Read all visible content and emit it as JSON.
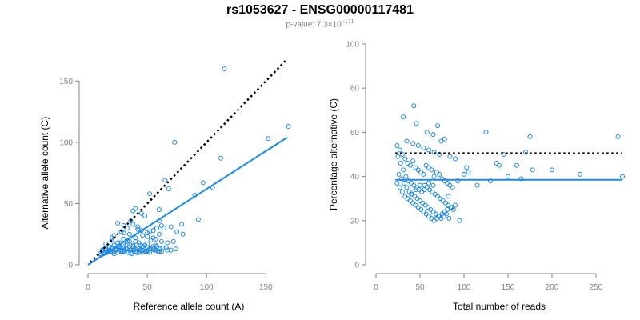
{
  "title": "rs1053627 - ENSG00000117481",
  "subtitle": {
    "prefix": "p-value: 7.3×10",
    "exponent": "−171"
  },
  "colors": {
    "points": "#1e88e5",
    "fit_line": "#1e88e5",
    "reference_line": "#000000",
    "axis": "#808080"
  },
  "chart_data": [
    {
      "type": "scatter",
      "xlabel": "Reference allele count (A)",
      "ylabel": "Alternative allele count (C)",
      "xlim": [
        0,
        170
      ],
      "ylim": [
        0,
        160
      ],
      "xticks": [
        0,
        50,
        100,
        150
      ],
      "yticks": [
        0,
        50,
        100,
        150
      ],
      "grid": false,
      "lines": [
        {
          "style": "dotted",
          "color": "#000000",
          "x": [
            2,
            168
          ],
          "y": [
            2,
            168
          ]
        },
        {
          "style": "solid",
          "color": "#1e88e5",
          "x": [
            0,
            168
          ],
          "y": [
            0,
            104
          ]
        }
      ],
      "points": {
        "x": [
          115,
          169,
          152,
          112,
          73,
          65,
          97,
          105,
          52,
          68,
          90,
          93,
          79,
          60,
          60,
          38,
          45,
          48,
          36,
          40,
          25,
          30,
          33,
          42,
          55,
          58,
          62,
          30,
          35,
          20,
          22,
          28,
          45,
          50,
          38,
          42,
          52,
          60,
          64,
          70,
          75,
          80,
          57,
          27,
          33,
          40,
          46,
          50,
          55,
          15,
          18,
          20,
          22,
          25,
          28,
          30,
          33,
          35,
          38,
          40,
          43,
          46,
          50,
          53,
          57,
          62,
          67,
          72,
          10,
          12,
          14,
          16,
          18,
          20,
          22,
          24,
          26,
          28,
          30,
          32,
          34,
          36,
          38,
          40,
          42,
          44,
          46,
          48,
          50,
          52,
          55,
          58,
          61,
          12,
          15,
          18,
          21,
          24,
          27,
          30,
          33,
          36,
          39,
          42,
          45,
          48,
          51,
          55,
          58,
          62,
          66,
          70,
          74,
          14,
          17,
          20,
          23,
          26,
          29,
          32,
          35,
          38,
          41,
          44,
          47,
          50,
          53,
          56,
          59,
          63,
          67,
          11,
          13,
          16,
          19,
          22,
          25,
          28,
          31,
          34,
          37,
          40,
          43,
          46,
          49,
          52,
          56,
          60
        ],
        "y": [
          160,
          113,
          103,
          87,
          100,
          69,
          67,
          63,
          58,
          62,
          57,
          37,
          33,
          36,
          45,
          44,
          42,
          40,
          36,
          46,
          34,
          32,
          30,
          31,
          28,
          30,
          32,
          26,
          25,
          22,
          24,
          27,
          28,
          26,
          33,
          29,
          27,
          25,
          30,
          31,
          27,
          25,
          21,
          18,
          20,
          19,
          24,
          23,
          22,
          17,
          15,
          20,
          16,
          18,
          14,
          21,
          17,
          19,
          16,
          22,
          18,
          15,
          17,
          20,
          16,
          19,
          18,
          19,
          9,
          11,
          13,
          10,
          12,
          14,
          11,
          13,
          15,
          12,
          14,
          16,
          10,
          12,
          15,
          13,
          14,
          16,
          12,
          11,
          14,
          13,
          15,
          12,
          13,
          12,
          13,
          11,
          14,
          12,
          15,
          11,
          13,
          10,
          12,
          14,
          11,
          16,
          12,
          13,
          15,
          11,
          14,
          12,
          13,
          10,
          11,
          13,
          12,
          14,
          11,
          13,
          12,
          15,
          10,
          12,
          14,
          11,
          13,
          12,
          11,
          14,
          12,
          8,
          9,
          10,
          11,
          9,
          10,
          11,
          12,
          10,
          9,
          11,
          10,
          12,
          11,
          10,
          12,
          11
        ]
      }
    },
    {
      "type": "scatter",
      "xlabel": "Total number of reads",
      "ylabel": "Percentage alternative (C)",
      "xlim": [
        0,
        280
      ],
      "ylim": [
        0,
        100
      ],
      "xticks": [
        0,
        50,
        100,
        150,
        200,
        250
      ],
      "yticks": [
        0,
        20,
        40,
        60,
        80,
        100
      ],
      "grid": false,
      "lines": [
        {
          "style": "dotted",
          "color": "#000000",
          "x": [
            22,
            280
          ],
          "y": [
            50.5,
            50.5
          ]
        },
        {
          "style": "solid",
          "color": "#1e88e5",
          "x": [
            22,
            280
          ],
          "y": [
            38.5,
            38.5
          ]
        }
      ],
      "points": {
        "x": [
          43,
          31,
          70,
          46,
          275,
          280,
          232,
          175,
          178,
          200,
          165,
          145,
          170,
          125,
          140,
          137,
          103,
          100,
          93,
          82,
          58,
          74,
          65,
          35,
          42,
          48,
          54,
          60,
          66,
          72,
          78,
          84,
          90,
          24,
          27,
          30,
          33,
          36,
          39,
          42,
          45,
          48,
          51,
          54,
          57,
          60,
          63,
          66,
          69,
          72,
          75,
          78,
          81,
          84,
          87,
          25,
          28,
          31,
          34,
          37,
          40,
          43,
          46,
          49,
          52,
          55,
          58,
          61,
          64,
          67,
          70,
          73,
          76,
          79,
          82,
          85,
          88,
          26,
          29,
          32,
          35,
          38,
          41,
          44,
          47,
          50,
          53,
          56,
          59,
          62,
          65,
          68,
          71,
          74,
          77,
          80,
          83,
          24,
          27,
          30,
          33,
          36,
          39,
          42,
          45,
          48,
          51,
          54,
          57,
          60,
          63,
          66,
          69,
          72,
          75,
          78,
          81,
          86,
          90,
          95,
          105,
          115,
          130,
          150,
          160,
          40,
          45,
          50,
          55,
          60,
          65
        ],
        "y": [
          72,
          67,
          63,
          64,
          58,
          40,
          41,
          58,
          43,
          43,
          39,
          50,
          51,
          60,
          45,
          46,
          44,
          41,
          38,
          31,
          60,
          56,
          59,
          56,
          55,
          54,
          53,
          52,
          51,
          50,
          57,
          49,
          48,
          54,
          52,
          50,
          48,
          46,
          45,
          47,
          44,
          43,
          42,
          41,
          45,
          44,
          43,
          40,
          42,
          41,
          39,
          38,
          37,
          36,
          35,
          49,
          46,
          43,
          40,
          38,
          37,
          36,
          35,
          34,
          33,
          36,
          35,
          34,
          33,
          32,
          31,
          30,
          29,
          28,
          27,
          26,
          25,
          41,
          39,
          37,
          35,
          33,
          32,
          31,
          30,
          29,
          28,
          27,
          26,
          25,
          24,
          23,
          22,
          21,
          22,
          23,
          21,
          37,
          35,
          33,
          31,
          30,
          29,
          28,
          27,
          26,
          25,
          24,
          23,
          22,
          21,
          20,
          21,
          22,
          23,
          24,
          25,
          26,
          27,
          20,
          42,
          36,
          38,
          40,
          45,
          32,
          34,
          36,
          34,
          37,
          36
        ]
      }
    }
  ]
}
